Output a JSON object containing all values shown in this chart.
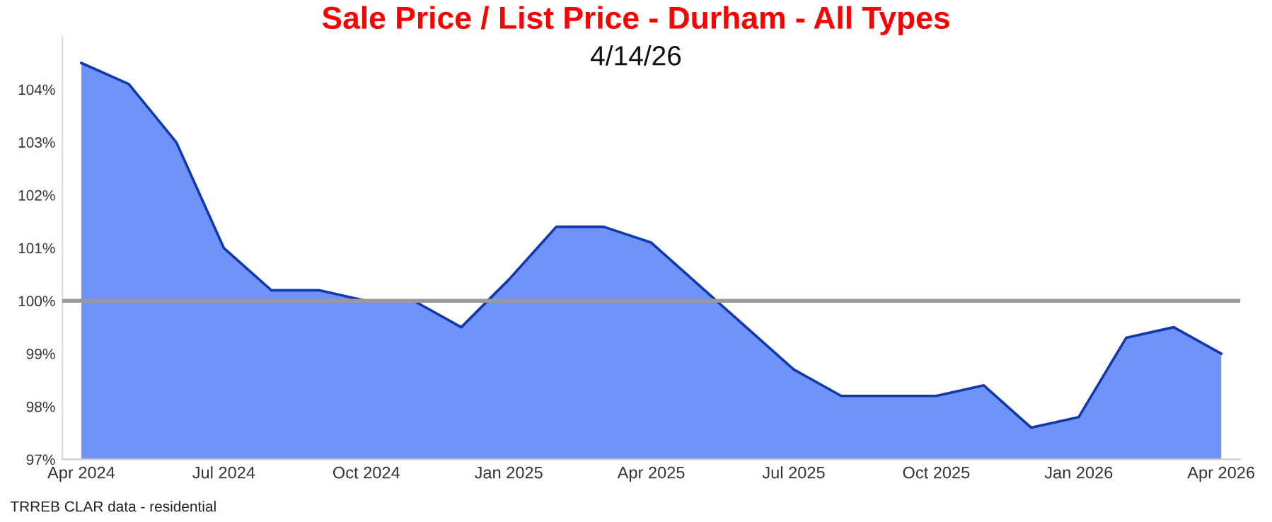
{
  "chart_data": {
    "type": "area",
    "title": "Sale Price / List Price - Durham - All Types",
    "subtitle": "4/14/26",
    "categories": [
      "Apr 2024",
      null,
      null,
      "Jul 2024",
      null,
      null,
      "Oct 2024",
      null,
      null,
      "Jan 2025",
      null,
      null,
      "Apr 2025",
      null,
      null,
      "Jul 2025",
      null,
      null,
      "Oct 2025",
      null,
      null,
      "Jan 2026",
      null,
      null,
      "Apr 2026"
    ],
    "series": [
      {
        "color": "#6f93f8",
        "values": [
          104.5,
          104.1,
          103.0,
          101.0,
          100.2,
          100.2,
          100.0,
          100.0,
          99.5,
          100.4,
          101.4,
          101.4,
          101.1,
          100.3,
          99.5,
          98.7,
          98.2,
          98.2,
          98.2,
          98.4,
          97.6,
          97.8,
          99.3,
          99.5,
          99.0
        ]
      }
    ],
    "ylim": [
      97,
      105
    ],
    "yticks": [
      {
        "value": 97,
        "label": "97%"
      },
      {
        "value": 98,
        "label": "98%"
      },
      {
        "value": 99,
        "label": "99%"
      },
      {
        "value": 100,
        "label": "100%"
      },
      {
        "value": 101,
        "label": "101%"
      },
      {
        "value": 102,
        "label": "102%"
      },
      {
        "value": 103,
        "label": "103%"
      },
      {
        "value": 104,
        "label": "104%"
      }
    ],
    "ref_lines": [
      {
        "axis": "y",
        "value": 100,
        "color": "#999999"
      }
    ],
    "annotations": [
      "TRREB CLAR data - residential"
    ],
    "grid": false,
    "legend": false
  }
}
